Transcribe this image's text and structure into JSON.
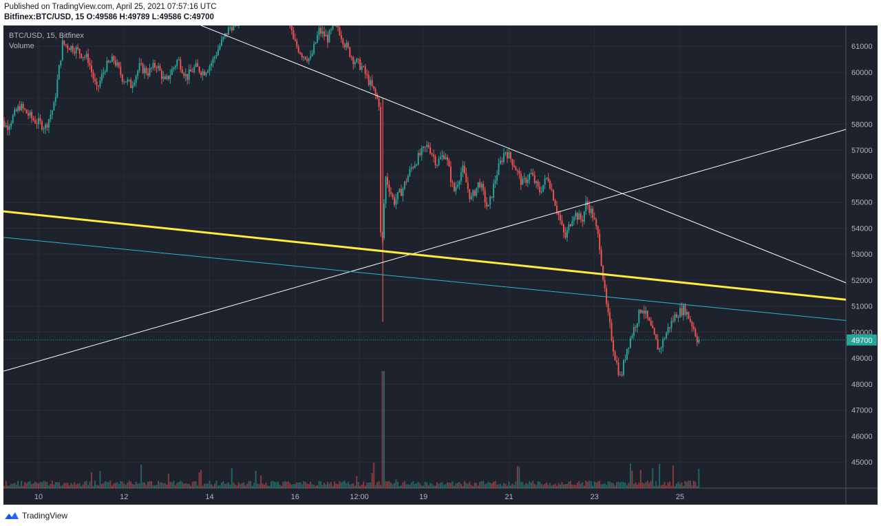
{
  "header": {
    "published_line": "Published on TradingView.com, April 25, 2021 07:57:16 UTC",
    "symbol": "Bitfinex:BTC/USD, 15",
    "ohlc": "O:49586 H:49789 L:49586 C:49700"
  },
  "legend": {
    "symbol_line": "BTC/USD, 15, Bitfinex",
    "volume_label": "Volume"
  },
  "footer": {
    "brand": "TradingView"
  },
  "colors": {
    "background": "#1e222d",
    "grid": "#2a2e39",
    "up": "#26a69a",
    "down": "#ef5350",
    "yellow_line": "#ffeb3b",
    "cyan_line": "#2ab7ca",
    "white_line": "#ffffff",
    "price_tag": "#26a69a"
  },
  "chart_data": {
    "type": "candlestick",
    "title": "BTC/USD, 15, Bitfinex",
    "y_axis": {
      "ylim": [
        44000,
        61800
      ],
      "ticks": [
        45000,
        46000,
        47000,
        48000,
        49000,
        50000,
        51000,
        52000,
        53000,
        54000,
        55000,
        56000,
        57000,
        58000,
        59000,
        60000,
        61000
      ]
    },
    "x_axis": {
      "labels": [
        "10",
        "12",
        "14",
        "16",
        "12:00",
        "19",
        "21",
        "23",
        "25"
      ],
      "label_positions_days": [
        1,
        3,
        5,
        7,
        8.5,
        10,
        12,
        14,
        16
      ]
    },
    "last_price": "49700",
    "price_path": [
      [
        0,
        58400
      ],
      [
        0.3,
        57900
      ],
      [
        0.6,
        58700
      ],
      [
        0.9,
        58200
      ],
      [
        1.2,
        57900
      ],
      [
        1.4,
        58700
      ],
      [
        1.6,
        61100
      ],
      [
        1.9,
        60900
      ],
      [
        2.2,
        60500
      ],
      [
        2.4,
        59300
      ],
      [
        2.6,
        60200
      ],
      [
        2.8,
        60500
      ],
      [
        3.0,
        59800
      ],
      [
        3.2,
        59500
      ],
      [
        3.4,
        60200
      ],
      [
        3.6,
        60000
      ],
      [
        3.8,
        60300
      ],
      [
        4.0,
        59600
      ],
      [
        4.3,
        60500
      ],
      [
        4.5,
        59800
      ],
      [
        4.7,
        60200
      ],
      [
        4.9,
        60000
      ],
      [
        5.1,
        60400
      ],
      [
        5.3,
        61100
      ],
      [
        5.5,
        61700
      ],
      [
        6.0,
        62500
      ],
      [
        6.5,
        63000
      ],
      [
        6.9,
        62000
      ],
      [
        7.0,
        61200
      ],
      [
        7.2,
        60700
      ],
      [
        7.4,
        60500
      ],
      [
        7.6,
        61600
      ],
      [
        7.8,
        61300
      ],
      [
        8.0,
        61900
      ],
      [
        8.2,
        61100
      ],
      [
        8.4,
        60500
      ],
      [
        8.6,
        60200
      ],
      [
        8.9,
        59200
      ],
      [
        9.0,
        58800
      ],
      [
        9.05,
        52500
      ],
      [
        9.15,
        56000
      ],
      [
        9.35,
        55000
      ],
      [
        9.55,
        55500
      ],
      [
        9.75,
        56300
      ],
      [
        9.95,
        56800
      ],
      [
        10.15,
        57200
      ],
      [
        10.35,
        56500
      ],
      [
        10.55,
        56900
      ],
      [
        10.75,
        55400
      ],
      [
        10.95,
        56300
      ],
      [
        11.15,
        55100
      ],
      [
        11.35,
        55800
      ],
      [
        11.55,
        54700
      ],
      [
        11.75,
        56100
      ],
      [
        11.95,
        57000
      ],
      [
        12.15,
        56500
      ],
      [
        12.35,
        55700
      ],
      [
        12.55,
        56100
      ],
      [
        12.75,
        55400
      ],
      [
        12.95,
        56000
      ],
      [
        13.15,
        54800
      ],
      [
        13.35,
        53600
      ],
      [
        13.55,
        54600
      ],
      [
        13.75,
        54300
      ],
      [
        13.85,
        55000
      ],
      [
        14.0,
        54500
      ],
      [
        14.15,
        53500
      ],
      [
        14.3,
        51200
      ],
      [
        14.5,
        49200
      ],
      [
        14.65,
        48200
      ],
      [
        14.8,
        49400
      ],
      [
        14.95,
        50100
      ],
      [
        15.15,
        51000
      ],
      [
        15.35,
        50200
      ],
      [
        15.55,
        49300
      ],
      [
        15.75,
        50100
      ],
      [
        15.95,
        50700
      ],
      [
        16.15,
        50900
      ],
      [
        16.35,
        50200
      ],
      [
        16.45,
        49700
      ]
    ],
    "volume_spike_day": 9.05,
    "trend_lines": [
      {
        "name": "white-descending",
        "color": "white",
        "points": [
          [
            4.8,
            61800
          ],
          [
            20.0,
            51900
          ]
        ]
      },
      {
        "name": "white-ascending",
        "color": "white",
        "points": [
          [
            0,
            48500
          ],
          [
            20.0,
            57800
          ]
        ]
      },
      {
        "name": "yellow-descending",
        "color": "yellow",
        "points": [
          [
            0,
            54650
          ],
          [
            20.0,
            51250
          ]
        ]
      },
      {
        "name": "cyan-descending",
        "color": "cyan",
        "points": [
          [
            0,
            53650
          ],
          [
            20.0,
            50450
          ]
        ]
      }
    ],
    "x_range_days": [
      0.0,
      20.0
    ]
  }
}
